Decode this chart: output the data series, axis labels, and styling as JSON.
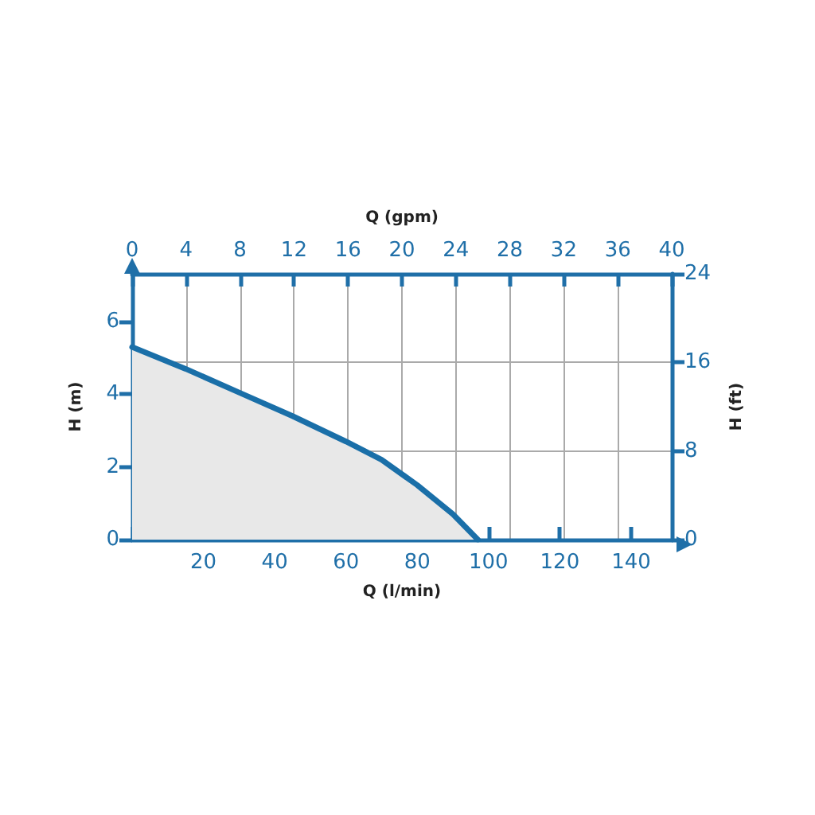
{
  "chart_data": {
    "type": "area",
    "xlabel": "Q (l/min)",
    "x2label": "Q (gpm)",
    "ylabel": "H (m)",
    "y2label": "H (ft)",
    "x": [
      0,
      15,
      30,
      45,
      60,
      70,
      80,
      90,
      97
    ],
    "series": [
      {
        "color": "#1a6fa8",
        "values": [
          5.3,
          4.7,
          4.05,
          3.4,
          2.7,
          2.2,
          1.5,
          0.7,
          0
        ]
      }
    ],
    "xlim": [
      0,
      151.4
    ],
    "xticks": [
      {
        "value": 0,
        "label": null
      },
      20,
      40,
      60,
      80,
      100,
      120,
      140
    ],
    "x2lim": [
      0,
      40
    ],
    "x2ticks": [
      0,
      4,
      8,
      12,
      16,
      20,
      24,
      28,
      32,
      36,
      40
    ],
    "ylim": [
      0,
      7.315
    ],
    "yticks": [
      0,
      2,
      4,
      6
    ],
    "y2lim": [
      0,
      24
    ],
    "y2ticks": [
      0,
      8,
      16,
      24
    ],
    "grid": true,
    "marker": "none",
    "line_style": "solid"
  }
}
